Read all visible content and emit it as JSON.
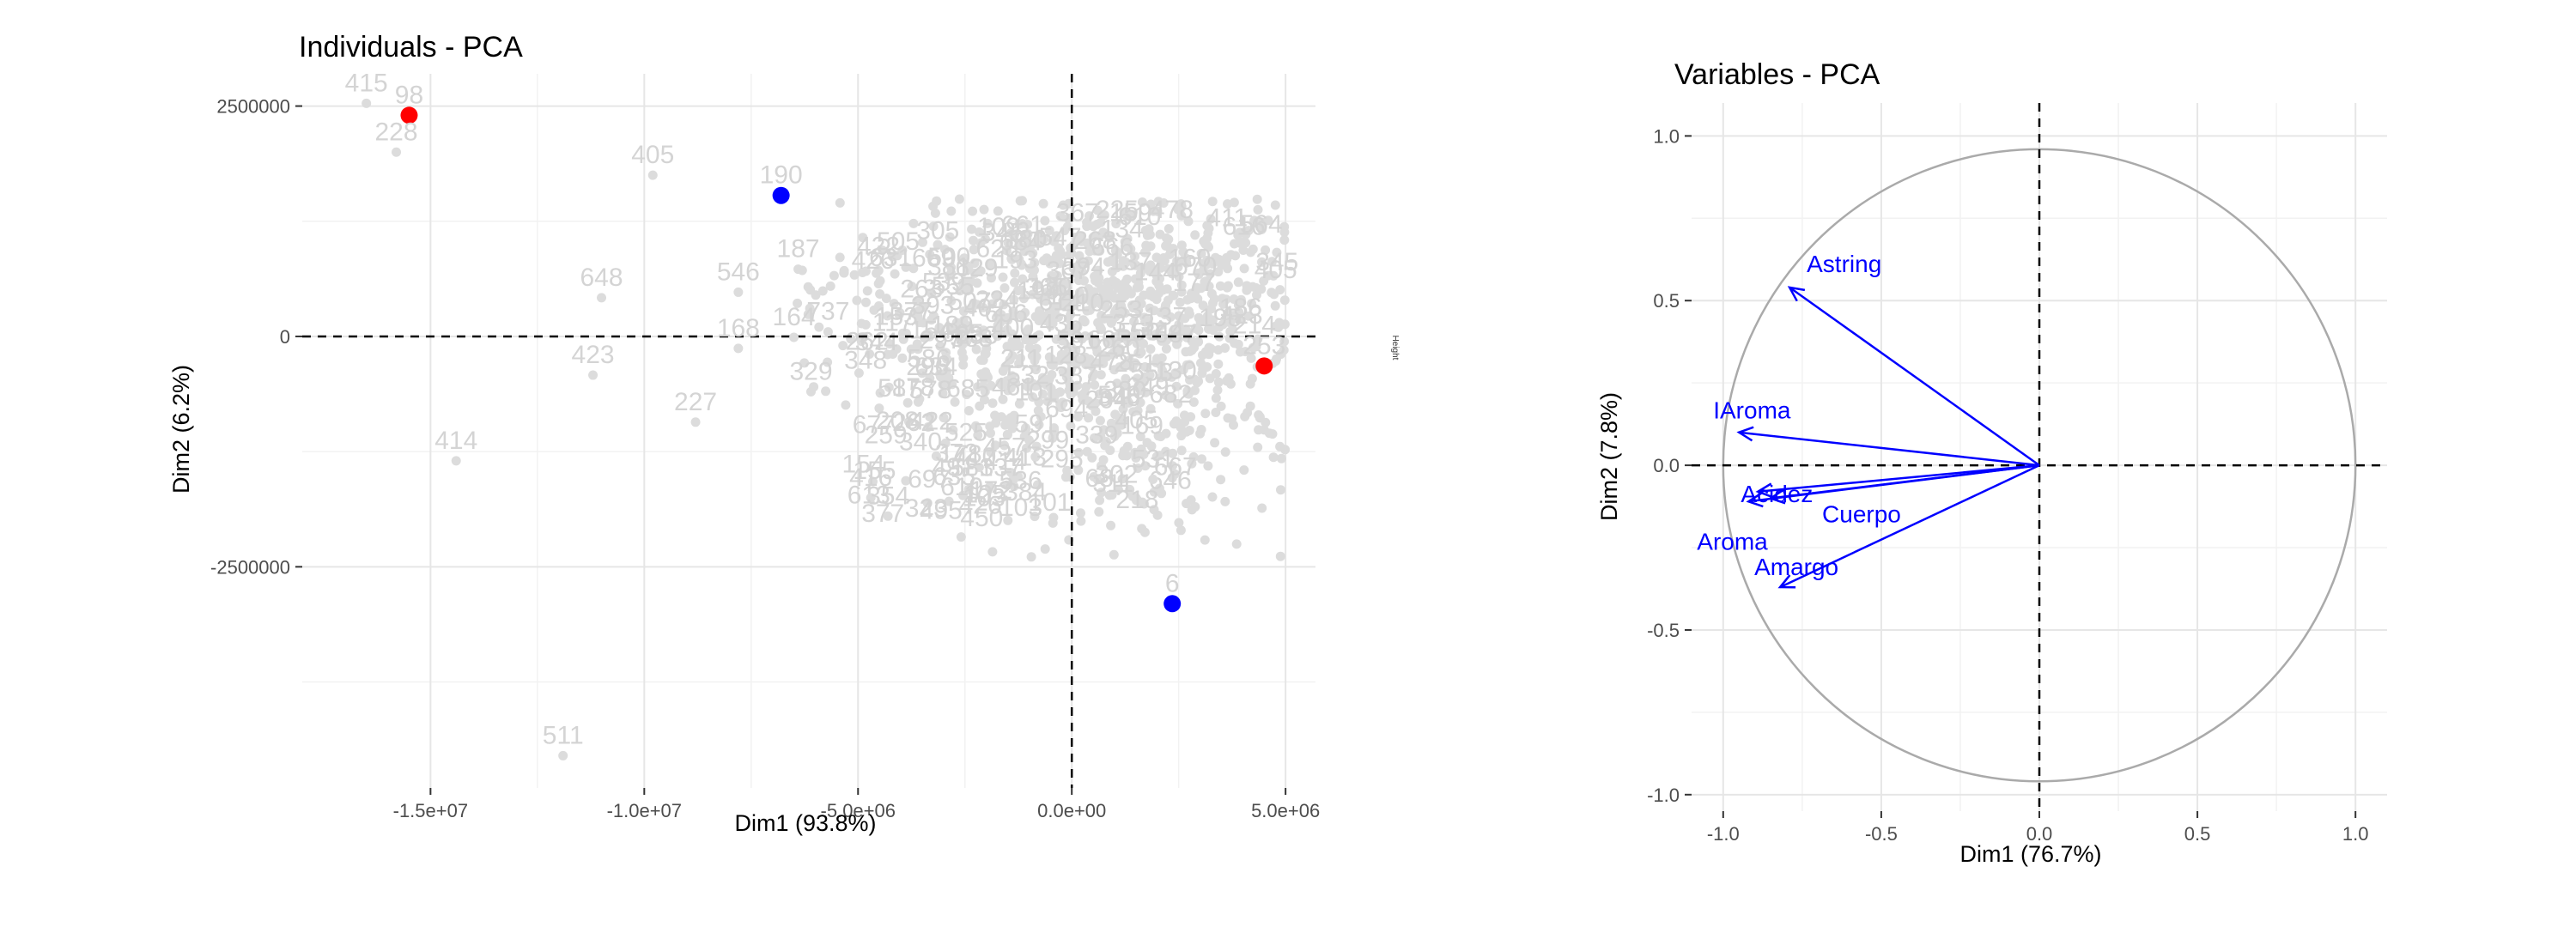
{
  "chart_data": [
    {
      "type": "scatter",
      "title": "Individuals - PCA",
      "xlabel": "Dim1 (93.8%)",
      "ylabel": "Dim2 (6.2%)",
      "xlim": [
        -18000000,
        5700000
      ],
      "ylim": [
        -4900000,
        2850000
      ],
      "x_ticks": [
        -15000000,
        -10000000,
        -5000000,
        0,
        5000000
      ],
      "x_tick_labels": [
        "-1.5e+07",
        "-1.0e+07",
        "-5.0e+06",
        "0.0e+00",
        "5.0e+06"
      ],
      "y_ticks": [
        -2500000,
        0,
        2500000
      ],
      "y_tick_labels": [
        "-2500000",
        "0",
        "2500000"
      ],
      "grid": true,
      "reference_lines": {
        "x": 0,
        "y": 0
      },
      "side_label": "Height",
      "labeled_points": [
        {
          "label": "415",
          "x": -16500000,
          "y": 2530000
        },
        {
          "label": "98",
          "x": -15500000,
          "y": 2400000,
          "highlight": "red"
        },
        {
          "label": "228",
          "x": -15800000,
          "y": 2000000
        },
        {
          "label": "405",
          "x": -9800000,
          "y": 1750000
        },
        {
          "label": "190",
          "x": -6800000,
          "y": 1530000,
          "highlight": "blue"
        },
        {
          "label": "648",
          "x": -11000000,
          "y": 420000
        },
        {
          "label": "546",
          "x": -7800000,
          "y": 480000
        },
        {
          "label": "187",
          "x": -6400000,
          "y": 730000
        },
        {
          "label": "423",
          "x": -11200000,
          "y": -420000
        },
        {
          "label": "168",
          "x": -7800000,
          "y": -130000
        },
        {
          "label": "164",
          "x": -6500000,
          "y": -10000
        },
        {
          "label": "737",
          "x": -5700000,
          "y": 50000
        },
        {
          "label": "227",
          "x": -8800000,
          "y": -930000
        },
        {
          "label": "329",
          "x": -6100000,
          "y": -600000
        },
        {
          "label": "414",
          "x": -14400000,
          "y": -1350000
        },
        {
          "label": "531",
          "x": 1900000,
          "y": -1550000
        },
        {
          "label": "416",
          "x": -4700000,
          "y": -1750000
        },
        {
          "label": "354",
          "x": -4300000,
          "y": -1950000
        },
        {
          "label": "511",
          "x": -11900000,
          "y": -4550000
        },
        {
          "label": "6",
          "x": 2350000,
          "y": -2900000,
          "highlight": "blue"
        },
        {
          "label": "253",
          "x": 4500000,
          "y": -320000,
          "highlight": "red"
        }
      ],
      "highlight_colors": {
        "red": "#ff0000",
        "blue": "#0000ff"
      },
      "cloud_color": "#dcdcdc",
      "cloud_x_range": [
        -6500000,
        5000000
      ],
      "cloud_y_range": [
        -2400000,
        1500000
      ]
    },
    {
      "type": "correlation-circle",
      "title": "Variables - PCA",
      "xlabel": "Dim1 (76.7%)",
      "ylabel": "Dim2 (7.8%)",
      "xlim": [
        -1.1,
        1.1
      ],
      "ylim": [
        -1.05,
        1.1
      ],
      "x_ticks": [
        -1.0,
        -0.5,
        0.0,
        0.5,
        1.0
      ],
      "x_tick_labels": [
        "-1.0",
        "-0.5",
        "0.0",
        "0.5",
        "1.0"
      ],
      "y_ticks": [
        -1.0,
        -0.5,
        0.0,
        0.5,
        1.0
      ],
      "y_tick_labels": [
        "-1.0",
        "-0.5",
        "0.0",
        "0.5",
        "1.0"
      ],
      "grid": true,
      "reference_lines": {
        "x": 0,
        "y": 0
      },
      "arrow_color": "#0000ff",
      "circle_color": "#aaaaaa",
      "variables": [
        {
          "label": "Astring",
          "x": -0.79,
          "y": 0.54
        },
        {
          "label": "IAroma",
          "x": -0.95,
          "y": 0.1
        },
        {
          "label": "Acidez",
          "x": -0.89,
          "y": -0.08
        },
        {
          "label": "Cuerpo",
          "x": -0.85,
          "y": -0.1
        },
        {
          "label": "Aroma",
          "x": -0.92,
          "y": -0.11
        },
        {
          "label": "Amargo",
          "x": -0.82,
          "y": -0.37
        }
      ]
    }
  ]
}
